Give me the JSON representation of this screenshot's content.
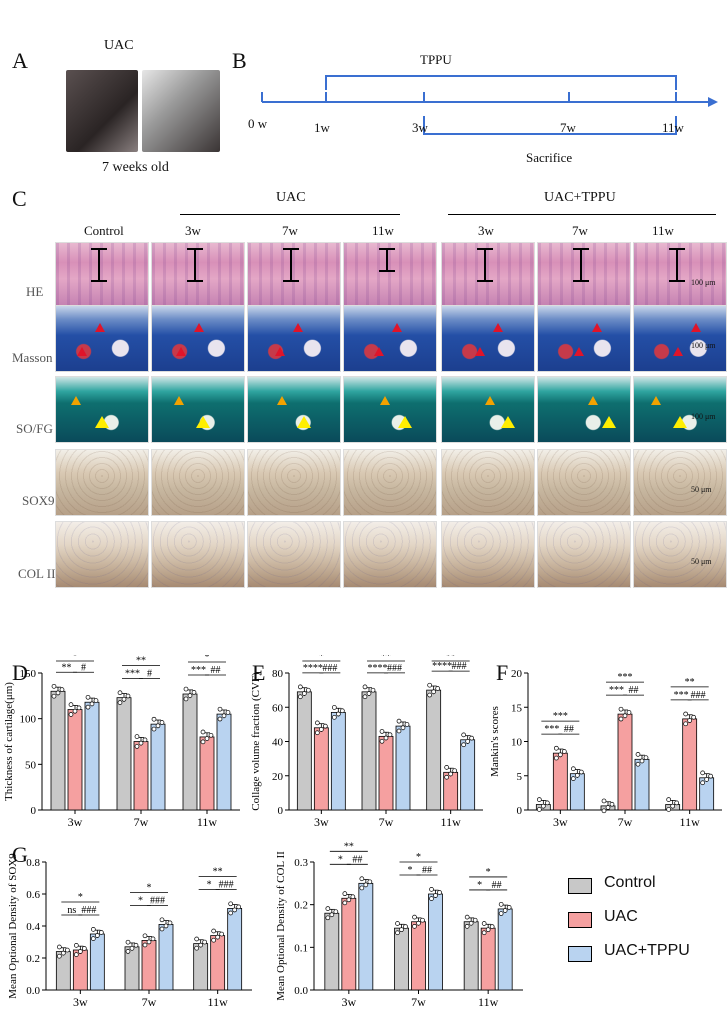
{
  "panelA": {
    "label": "A",
    "title": "UAC",
    "caption": "7 weeks old"
  },
  "panelB": {
    "label": "B",
    "tppu": "TPPU",
    "sacrifice": "Sacrifice",
    "ticks": [
      "0 w",
      "1w",
      "3w",
      "7w",
      "11w"
    ]
  },
  "panelC": {
    "label": "C",
    "groups": {
      "uac": "UAC",
      "uac_tppu": "UAC+TPPU"
    },
    "columns": [
      "Control",
      "3w",
      "7w",
      "11w",
      "3w",
      "7w",
      "11w"
    ],
    "rows": [
      "HE",
      "Masson",
      "SO/FG",
      "SOX9",
      "COL II"
    ],
    "scalebars": [
      "100 μm",
      "100 μm",
      "100 μm",
      "50 μm",
      "50 μm"
    ]
  },
  "legend": {
    "items": [
      {
        "label": "Control",
        "color": "#c8c8c8"
      },
      {
        "label": "UAC",
        "color": "#f5a0a0"
      },
      {
        "label": "UAC+TPPU",
        "color": "#b9d3f0"
      }
    ]
  },
  "chart_data": [
    {
      "panel": "D",
      "type": "bar",
      "categories": [
        "3w",
        "7w",
        "11w"
      ],
      "ylabel": "Thickness of cartilage(μm)",
      "ylim": [
        0,
        150
      ],
      "yticks": [
        0,
        50,
        100,
        150
      ],
      "series": [
        {
          "name": "Control",
          "values": [
            130,
            123,
            127
          ]
        },
        {
          "name": "UAC",
          "values": [
            110,
            75,
            80
          ]
        },
        {
          "name": "UAC+TPPU",
          "values": [
            118,
            94,
            105
          ]
        }
      ],
      "sig": [
        [
          "*",
          "**",
          "#"
        ],
        [
          "**",
          "***",
          "#"
        ],
        [
          "*",
          "***",
          "##"
        ]
      ]
    },
    {
      "panel": "E",
      "type": "bar",
      "categories": [
        "3w",
        "7w",
        "11w"
      ],
      "ylabel": "Collage volume fraction (CVF)",
      "ylim": [
        0,
        80
      ],
      "yticks": [
        0,
        20,
        40,
        60,
        80
      ],
      "series": [
        {
          "name": "Control",
          "values": [
            69,
            69,
            70
          ]
        },
        {
          "name": "UAC",
          "values": [
            48,
            43,
            22
          ]
        },
        {
          "name": "UAC+TPPU",
          "values": [
            57,
            49,
            41
          ]
        }
      ],
      "sig": [
        [
          "*",
          "****",
          "###"
        ],
        [
          "**",
          "****",
          "###"
        ],
        [
          "**",
          "****",
          "###"
        ]
      ]
    },
    {
      "panel": "F",
      "type": "bar",
      "categories": [
        "3w",
        "7w",
        "11w"
      ],
      "ylabel": "Mankin's scores",
      "ylim": [
        0,
        20
      ],
      "yticks": [
        0,
        5,
        10,
        15,
        20
      ],
      "series": [
        {
          "name": "Control",
          "values": [
            0.8,
            0.6,
            0.8
          ]
        },
        {
          "name": "UAC",
          "values": [
            8.3,
            14,
            13.3
          ]
        },
        {
          "name": "UAC+TPPU",
          "values": [
            5.3,
            7.4,
            4.7
          ]
        }
      ],
      "sig": [
        [
          "***",
          "***",
          "##"
        ],
        [
          "***",
          "***",
          "##"
        ],
        [
          "**",
          "***",
          "###"
        ]
      ]
    },
    {
      "panel": "G",
      "type": "bar",
      "categories": [
        "3w",
        "7w",
        "11w"
      ],
      "ylabel": "Mean Optional Density of SOX9",
      "ylim": [
        0,
        0.8
      ],
      "yticks": [
        0.0,
        0.2,
        0.4,
        0.6,
        0.8
      ],
      "series": [
        {
          "name": "Control",
          "values": [
            0.24,
            0.27,
            0.29
          ]
        },
        {
          "name": "UAC",
          "values": [
            0.25,
            0.31,
            0.34
          ]
        },
        {
          "name": "UAC+TPPU",
          "values": [
            0.35,
            0.41,
            0.51
          ]
        }
      ],
      "sig": [
        [
          "*",
          "ns",
          "###"
        ],
        [
          "*",
          "*",
          "###"
        ],
        [
          "**",
          "*",
          "###"
        ]
      ]
    },
    {
      "panel": "G2",
      "type": "bar",
      "categories": [
        "3w",
        "7w",
        "11w"
      ],
      "ylabel": "Mean Optional Density of COL II",
      "ylim": [
        0,
        0.3
      ],
      "yticks": [
        0.0,
        0.1,
        0.2,
        0.3
      ],
      "series": [
        {
          "name": "Control",
          "values": [
            0.18,
            0.145,
            0.16
          ]
        },
        {
          "name": "UAC",
          "values": [
            0.215,
            0.16,
            0.145
          ]
        },
        {
          "name": "UAC+TPPU",
          "values": [
            0.25,
            0.225,
            0.19
          ]
        }
      ],
      "sig": [
        [
          "**",
          "*",
          "##"
        ],
        [
          "*",
          "*",
          "##"
        ],
        [
          "*",
          "*",
          "##"
        ]
      ]
    }
  ]
}
